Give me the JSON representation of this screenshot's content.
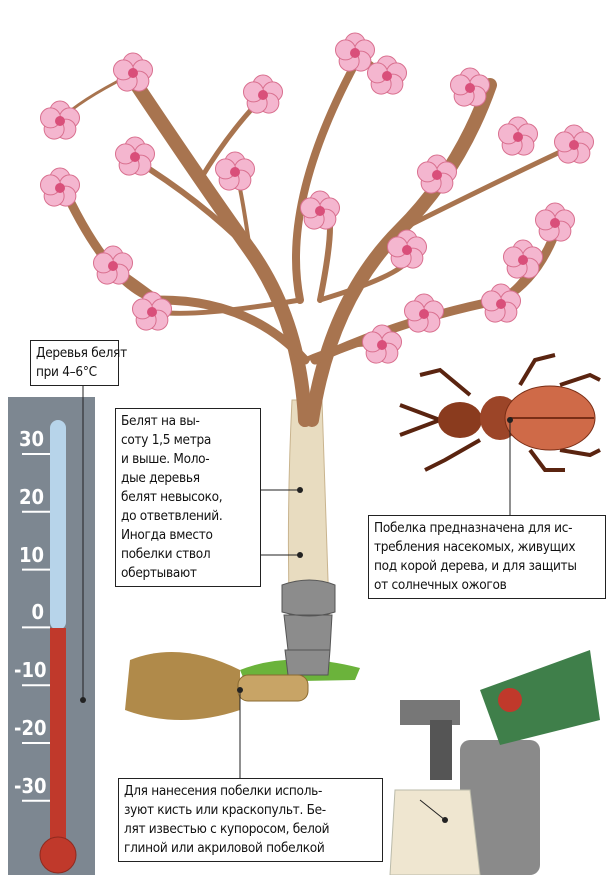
{
  "thermometer": {
    "labels": [
      "30",
      "20",
      "10",
      "0",
      "-10",
      "-20",
      "-30"
    ]
  },
  "callouts": [
    {
      "lines": [
        "Деревья белят",
        "при 4–6°C"
      ]
    },
    {
      "lines": [
        "Белят на вы-",
        "соту 1,5 метра",
        "и выше. Моло-",
        "дые деревья",
        "белят невысоко,",
        "до ответвлений.",
        "Иногда вместо",
        "побелки ствол",
        "обертывают"
      ]
    },
    {
      "lines": [
        "Побелка  предназначена для ис-",
        "требления насекомых, живущих",
        "под корой дерева, и для защиты",
        "от солнечных ожогов"
      ]
    },
    {
      "lines": [
        "Для нанесения побелки исполь-",
        "зуют кисть или краскопульт. Бе-",
        "лят известью с купоросом, белой",
        "глиной или акриловой побелкой"
      ]
    }
  ]
}
